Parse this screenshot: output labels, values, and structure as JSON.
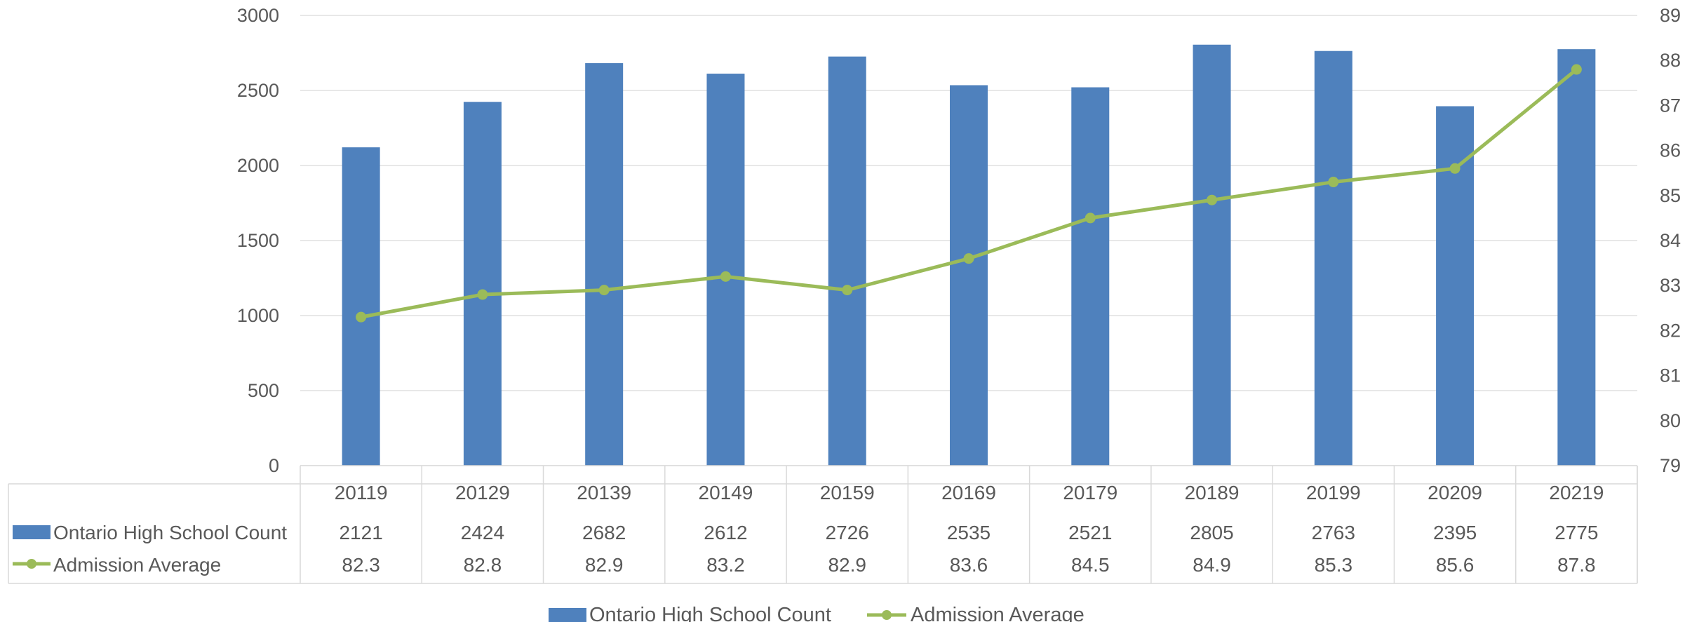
{
  "chart_data": {
    "type": "bar",
    "categories": [
      "20119",
      "20129",
      "20139",
      "20149",
      "20159",
      "20169",
      "20179",
      "20189",
      "20199",
      "20209",
      "20219"
    ],
    "series": [
      {
        "name": "Ontario High School Count",
        "type": "bar",
        "axis": "left",
        "color": "#4f81bd",
        "values": [
          2121,
          2424,
          2682,
          2612,
          2726,
          2535,
          2521,
          2805,
          2763,
          2395,
          2775
        ],
        "labels": [
          "2121",
          "2424",
          "2682",
          "2612",
          "2726",
          "2535",
          "2521",
          "2805",
          "2763",
          "2395",
          "2775"
        ]
      },
      {
        "name": "Admission Average",
        "type": "line",
        "axis": "right",
        "color": "#9bbb59",
        "values": [
          82.3,
          82.8,
          82.9,
          83.2,
          82.9,
          83.6,
          84.5,
          84.9,
          85.3,
          85.6,
          87.8
        ],
        "labels": [
          "82.3",
          "82.8",
          "82.9",
          "83.2",
          "82.9",
          "83.6",
          "84.5",
          "84.9",
          "85.3",
          "85.6",
          "87.8"
        ]
      }
    ],
    "ylim": [
      0,
      3000
    ],
    "y_ticks": [
      "0",
      "500",
      "1000",
      "1500",
      "2000",
      "2500",
      "3000"
    ],
    "y2lim": [
      79,
      89
    ],
    "y2_ticks": [
      "79",
      "80",
      "81",
      "82",
      "83",
      "84",
      "85",
      "86",
      "87",
      "88",
      "89"
    ],
    "grid": true,
    "data_table": true,
    "legend_position": "bottom"
  }
}
